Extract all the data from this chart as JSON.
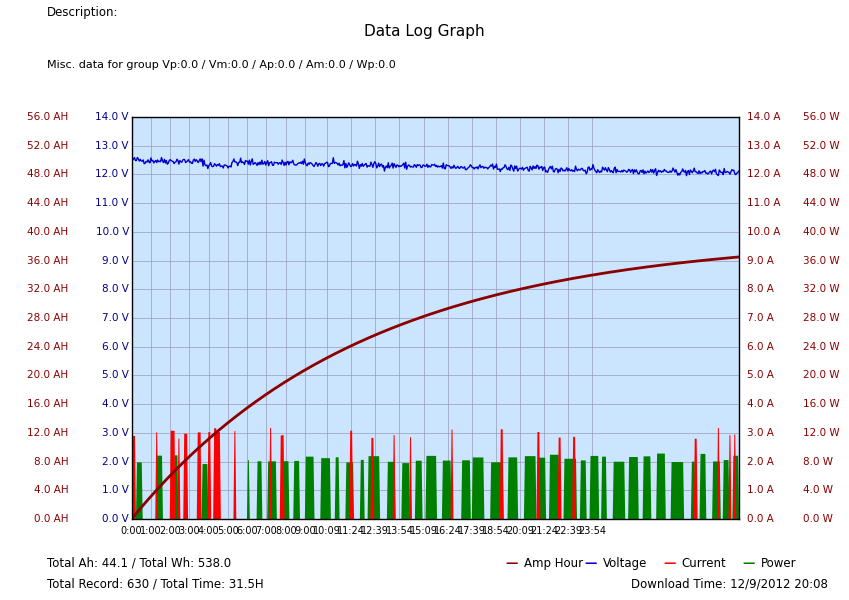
{
  "title": "Data Log Graph",
  "description": "Description:",
  "misc_label": "Misc. data for group Vp:0.0 / Vm:0.0 / Ap:0.0 / Am:0.0 / Wp:0.0",
  "footer_left1": "Total Ah: 44.1 / Total Wh: 538.0",
  "footer_left2": "Total Record: 630 / Total Time: 31.5H",
  "footer_right": "Download Time: 12/9/2012 20:08",
  "x_ticks": [
    "0:00",
    "1:00",
    "2:00",
    "3:00",
    "4:00",
    "5:00",
    "6:00",
    "7:00",
    "8:00",
    "9:00",
    "10:09",
    "11:24",
    "12:39",
    "13:54",
    "15:09",
    "16:24",
    "17:39",
    "18:54",
    "20:09",
    "21:24",
    "22:39",
    "23:54"
  ],
  "x_tick_hours": [
    0,
    1,
    2,
    3,
    4,
    5,
    6,
    7,
    8,
    9,
    10.15,
    11.4,
    12.65,
    13.9,
    15.15,
    16.4,
    17.65,
    18.9,
    20.15,
    21.4,
    22.65,
    23.9
  ],
  "ah_ticks": [
    0,
    4,
    8,
    12,
    16,
    20,
    24,
    28,
    32,
    36,
    40,
    44,
    48,
    52,
    56
  ],
  "v_ticks": [
    0,
    1,
    2,
    3,
    4,
    5,
    6,
    7,
    8,
    9,
    10,
    11,
    12,
    13,
    14
  ],
  "color_amphour": "#8B0000",
  "color_voltage": "#0000CD",
  "color_current": "#FF0000",
  "color_power": "#008000",
  "color_ah_label": "#8B0000",
  "color_v_label": "#00008B",
  "color_aw_label": "#8B0000",
  "bg_color": "#CCE5FF",
  "grid_color": "#9999BB",
  "n_points": 630,
  "total_hours": 31.5,
  "voltage_mean": 12.5,
  "voltage_noise": 0.06,
  "voltage_drift": 0.45
}
